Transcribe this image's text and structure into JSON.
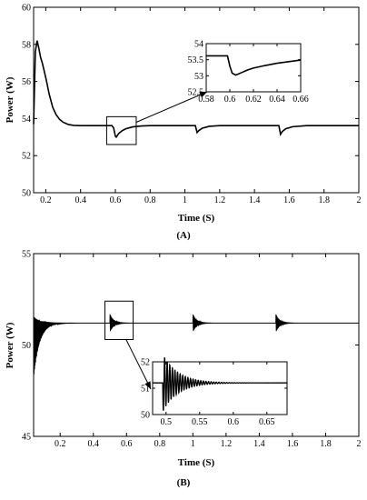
{
  "chart_data": [
    {
      "panel_label": "(A)",
      "type": "line",
      "xlabel": "Time (S)",
      "ylabel": "Power (W)",
      "xlim": [
        0.13,
        2
      ],
      "ylim": [
        50,
        60
      ],
      "xticks": [
        0.2,
        0.4,
        0.6,
        0.8,
        1,
        1.2,
        1.4,
        1.6,
        1.8,
        2
      ],
      "xtick_labels": [
        "0.2",
        "0.4",
        "0.6",
        "0.8",
        "1",
        "1.2",
        "1.4",
        "1.6",
        "1.8",
        "2"
      ],
      "yticks": [
        50,
        52,
        54,
        56,
        58,
        60
      ],
      "ytick_labels": [
        "50",
        "52",
        "54",
        "56",
        "58",
        "60"
      ],
      "grid": false,
      "series": [
        {
          "x": [
            0.13,
            0.14,
            0.15,
            0.16,
            0.17,
            0.18,
            0.2,
            0.22,
            0.24,
            0.26,
            0.28,
            0.3,
            0.33,
            0.36,
            0.4,
            0.45,
            0.5,
            0.58,
            0.59,
            0.6,
            0.605,
            0.62,
            0.64,
            0.66,
            0.7,
            0.75,
            0.8,
            0.9,
            1.0,
            1.06,
            1.07,
            1.08,
            1.1,
            1.14,
            1.2,
            1.3,
            1.4,
            1.5,
            1.54,
            1.55,
            1.56,
            1.58,
            1.62,
            1.7,
            1.8,
            1.9,
            2.0
          ],
          "y": [
            53.7,
            57.6,
            58.2,
            57.8,
            57.3,
            57.0,
            56.2,
            55.3,
            54.6,
            54.2,
            53.95,
            53.8,
            53.68,
            53.63,
            53.62,
            53.62,
            53.62,
            53.62,
            53.5,
            53.05,
            53.0,
            53.2,
            53.35,
            53.45,
            53.55,
            53.6,
            53.62,
            53.62,
            53.62,
            53.62,
            53.25,
            53.35,
            53.48,
            53.58,
            53.62,
            53.62,
            53.62,
            53.62,
            53.62,
            53.15,
            53.3,
            53.45,
            53.56,
            53.62,
            53.62,
            53.62,
            53.62
          ]
        }
      ],
      "zoom_box": {
        "x": [
          0.55,
          0.72
        ],
        "y": [
          52.6,
          54.1
        ]
      },
      "inset": {
        "xlim": [
          0.58,
          0.66
        ],
        "ylim": [
          52.5,
          54
        ],
        "xticks": [
          0.58,
          0.6,
          0.62,
          0.64,
          0.66
        ],
        "xtick_labels": [
          "0.58",
          "0.6",
          "0.62",
          "0.64",
          "0.66"
        ],
        "yticks": [
          52.5,
          53,
          53.5,
          54
        ],
        "ytick_labels": [
          "52.5",
          "53",
          "53.5",
          "54"
        ],
        "x": [
          0.58,
          0.59,
          0.598,
          0.6,
          0.602,
          0.605,
          0.61,
          0.615,
          0.62,
          0.63,
          0.64,
          0.65,
          0.66
        ],
        "y": [
          53.62,
          53.62,
          53.62,
          53.3,
          53.08,
          53.02,
          53.1,
          53.18,
          53.24,
          53.32,
          53.39,
          53.44,
          53.49
        ]
      }
    },
    {
      "panel_label": "(B)",
      "type": "line",
      "xlabel": "Time (S)",
      "ylabel": "Power (W)",
      "xlim": [
        0.04,
        2
      ],
      "ylim": [
        45,
        55
      ],
      "xticks": [
        0.2,
        0.4,
        0.6,
        0.8,
        1,
        1.2,
        1.4,
        1.6,
        1.8,
        2
      ],
      "xtick_labels": [
        "0.2",
        "0.4",
        "0.6",
        "0.8",
        "1",
        "1.2",
        "1.4",
        "1.6",
        "1.8",
        "2"
      ],
      "yticks": [
        45,
        50,
        55
      ],
      "ytick_labels": [
        "45",
        "50",
        "55"
      ],
      "grid": false,
      "steady": 51.2,
      "startup_oscillation": {
        "t0": 0.04,
        "amp_high": 0.35,
        "amp_low": 3.0,
        "freq": 320,
        "decay": 28
      },
      "disturbances": [
        {
          "t0": 0.5,
          "amp": 0.5,
          "freq": 260,
          "decay": 45
        },
        {
          "t0": 1.0,
          "amp": 0.5,
          "freq": 260,
          "decay": 45
        },
        {
          "t0": 1.5,
          "amp": 0.5,
          "freq": 260,
          "decay": 45
        }
      ],
      "zoom_box": {
        "x": [
          0.47,
          0.64
        ],
        "y": [
          50.3,
          52.4
        ]
      },
      "inset": {
        "xlim": [
          0.48,
          0.68
        ],
        "ylim": [
          50,
          52
        ],
        "xticks": [
          0.5,
          0.55,
          0.6,
          0.65
        ],
        "xtick_labels": [
          "0.5",
          "0.55",
          "0.6",
          "0.65"
        ],
        "yticks": [
          50,
          51,
          52
        ],
        "ytick_labels": [
          "50",
          "51",
          "52"
        ],
        "t0": 0.495,
        "amp": 1.1,
        "freq": 260,
        "decay": 45
      }
    }
  ]
}
